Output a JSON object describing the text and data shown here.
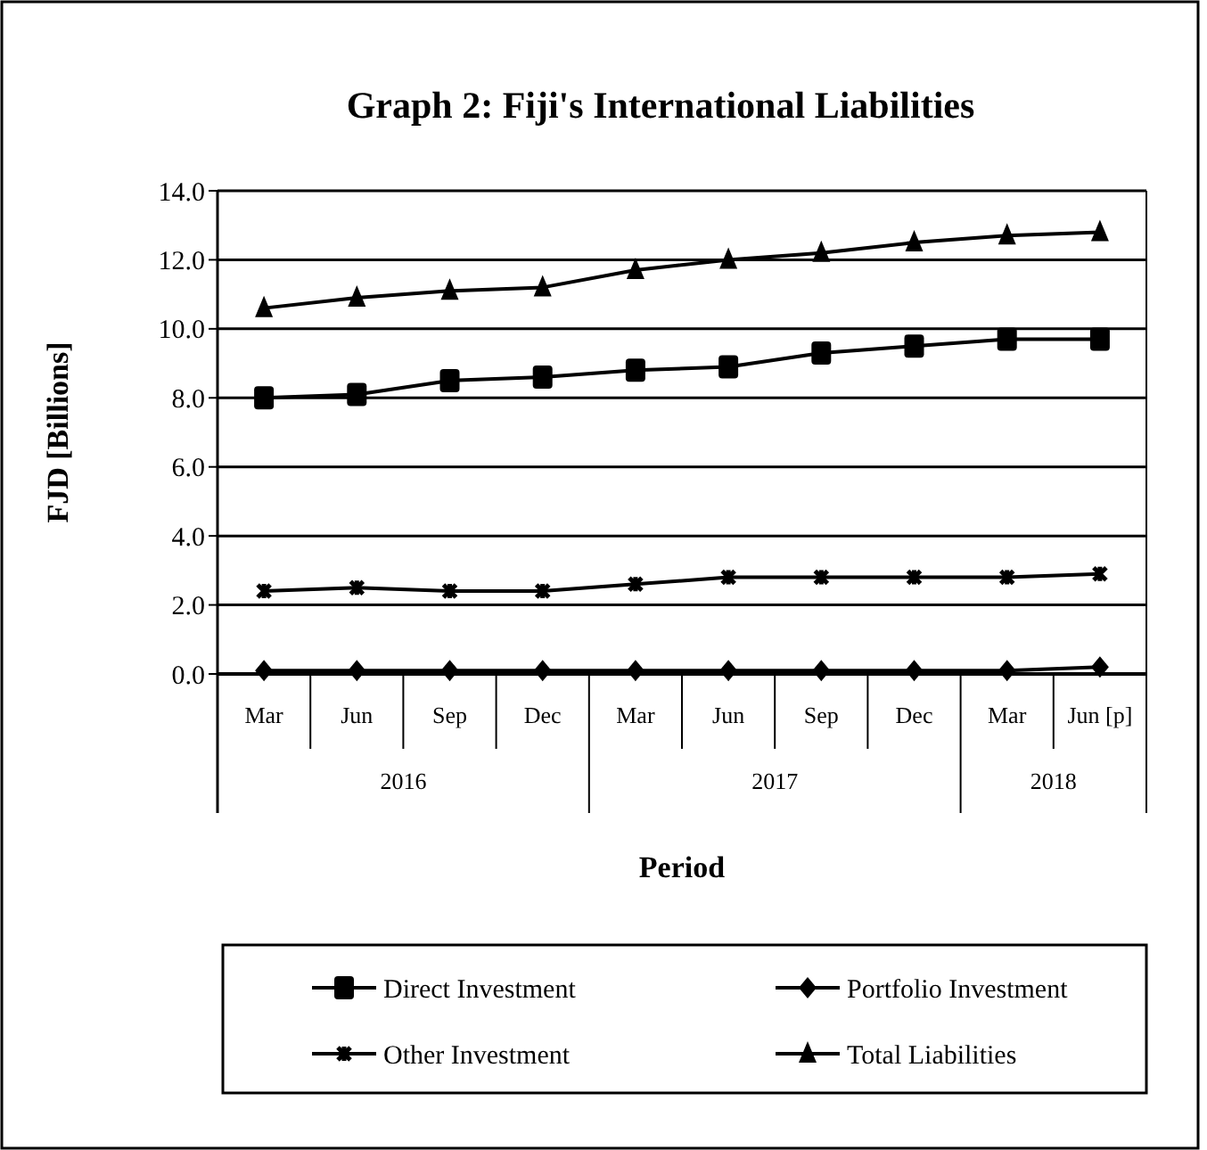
{
  "chart_data": {
    "type": "line",
    "title": "Graph 2: Fiji's International Liabilities",
    "xlabel": "Period",
    "ylabel": "FJD [Billions]",
    "categories": [
      "Mar",
      "Jun",
      "Sep",
      "Dec",
      "Mar",
      "Jun",
      "Sep",
      "Dec",
      "Mar",
      "Jun [p]"
    ],
    "annotations": [
      "2016",
      "2017",
      "2018"
    ],
    "series": [
      {
        "name": "Direct Investment",
        "color": "#000000",
        "marker": "square",
        "values": [
          8.0,
          8.1,
          8.5,
          8.6,
          8.8,
          8.9,
          9.3,
          9.5,
          9.7,
          9.7
        ]
      },
      {
        "name": "Portfolio Investment",
        "color": "#000000",
        "marker": "diamond",
        "values": [
          0.1,
          0.1,
          0.1,
          0.1,
          0.1,
          0.1,
          0.1,
          0.1,
          0.1,
          0.2
        ]
      },
      {
        "name": "Other Investment",
        "color": "#000000",
        "marker": "cross",
        "values": [
          2.4,
          2.5,
          2.4,
          2.4,
          2.6,
          2.8,
          2.8,
          2.8,
          2.8,
          2.9
        ]
      },
      {
        "name": "Total Liabilities",
        "color": "#000000",
        "marker": "triangle",
        "values": [
          10.6,
          10.9,
          11.1,
          11.2,
          11.7,
          12.0,
          12.2,
          12.5,
          12.7,
          12.8
        ]
      }
    ],
    "ylim": [
      0,
      14
    ],
    "yticks": [
      {
        "value": 0,
        "label": "0.0"
      },
      {
        "value": 2,
        "label": "2.0"
      },
      {
        "value": 4,
        "label": "4.0"
      },
      {
        "value": 6,
        "label": "6.0"
      },
      {
        "value": 8,
        "label": "8.0"
      },
      {
        "value": 10,
        "label": "10.0"
      },
      {
        "value": 12,
        "label": "12.0"
      },
      {
        "value": 14,
        "label": "14.0"
      }
    ],
    "grid": "y",
    "legend": "bottom",
    "line_style": "solid"
  }
}
